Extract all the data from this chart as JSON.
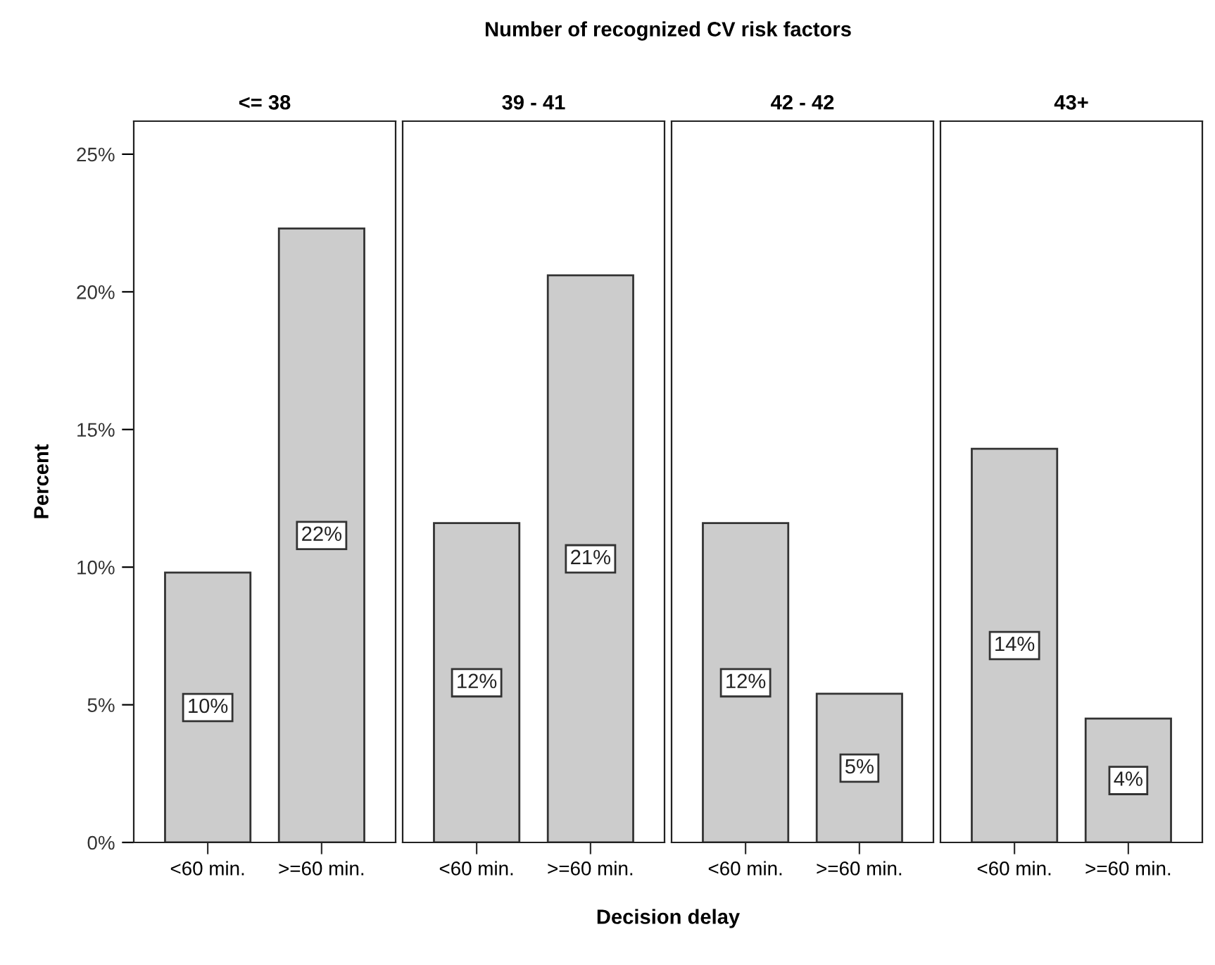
{
  "chart_data": [
    {
      "type": "bar",
      "title": "<= 38",
      "ylabel": "Percent",
      "annotations": [
        "Number of recognized CV risk factors",
        "Decision delay"
      ],
      "categories": [
        "<60 min.",
        ">=60 min."
      ],
      "values": [
        9.8,
        22.3
      ],
      "value_labels": [
        "10%",
        "22%"
      ],
      "color": "#cccccc",
      "ylim": [
        0,
        26.2
      ],
      "yticks": [
        {
          "value": 0,
          "label": "0%"
        },
        {
          "value": 5,
          "label": "5%"
        },
        {
          "value": 10,
          "label": "10%"
        },
        {
          "value": 15,
          "label": "15%"
        },
        {
          "value": 20,
          "label": "20%"
        },
        {
          "value": 25,
          "label": "25%"
        }
      ],
      "grid": false,
      "legend": false
    },
    {
      "type": "bar",
      "title": "39 - 41",
      "categories": [
        "<60 min.",
        ">=60 min."
      ],
      "values": [
        11.6,
        20.6
      ],
      "value_labels": [
        "12%",
        "21%"
      ],
      "color": "#cccccc",
      "ylim": [
        0,
        26.2
      ],
      "tick_labels": "x",
      "grid": false,
      "legend": false
    },
    {
      "type": "bar",
      "title": "42 - 42",
      "categories": [
        "<60 min.",
        ">=60 min."
      ],
      "values": [
        11.6,
        5.4
      ],
      "value_labels": [
        "12%",
        "5%"
      ],
      "color": "#cccccc",
      "ylim": [
        0,
        26.2
      ],
      "tick_labels": "x",
      "grid": false,
      "legend": false
    },
    {
      "type": "bar",
      "title": "43+",
      "categories": [
        "<60 min.",
        ">=60 min."
      ],
      "values": [
        14.3,
        4.5
      ],
      "value_labels": [
        "14%",
        "4%"
      ],
      "color": "#cccccc",
      "ylim": [
        0,
        26.2
      ],
      "tick_labels": "x",
      "grid": false,
      "legend": false
    }
  ]
}
